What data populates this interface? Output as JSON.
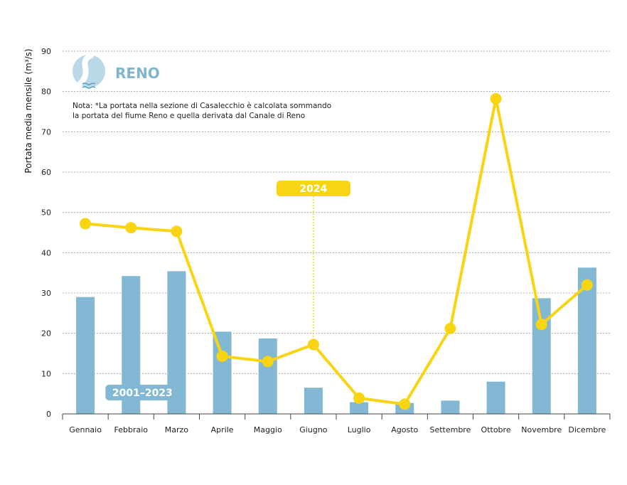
{
  "brand": {
    "name": "RENO",
    "color": "#7fb5cf",
    "icon": "river-logo-icon"
  },
  "note": {
    "line1": "Nota: *La portata nella sezione di Casalecchio è calcolata sommando",
    "line2": "la portata del fiume Reno e quella derivata dal Canale di Reno"
  },
  "chart_data": {
    "type": "bar",
    "ylabel": "Portata media mensile (m³/s)",
    "ylim": [
      0,
      90
    ],
    "yticks": [
      0,
      10,
      20,
      30,
      40,
      50,
      60,
      70,
      80,
      90
    ],
    "grid": true,
    "categories": [
      "Gennaio",
      "Febbraio",
      "Marzo",
      "Aprile",
      "Maggio",
      "Giugno",
      "Luglio",
      "Agosto",
      "Settembre",
      "Ottobre",
      "Novembre",
      "Dicembre"
    ],
    "series": [
      {
        "name": "2001–2023",
        "type": "bar",
        "color": "#82b8d4",
        "values": [
          29.0,
          34.2,
          35.4,
          20.4,
          18.7,
          6.5,
          2.9,
          2.7,
          3.3,
          8.0,
          28.7,
          36.3
        ]
      },
      {
        "name": "2024",
        "type": "line",
        "color": "#f8d412",
        "values": [
          47.2,
          46.2,
          45.3,
          14.3,
          13.0,
          17.2,
          3.9,
          2.4,
          21.2,
          78.2,
          22.2,
          32.0
        ]
      }
    ],
    "legend": {
      "placement": "inline"
    }
  }
}
